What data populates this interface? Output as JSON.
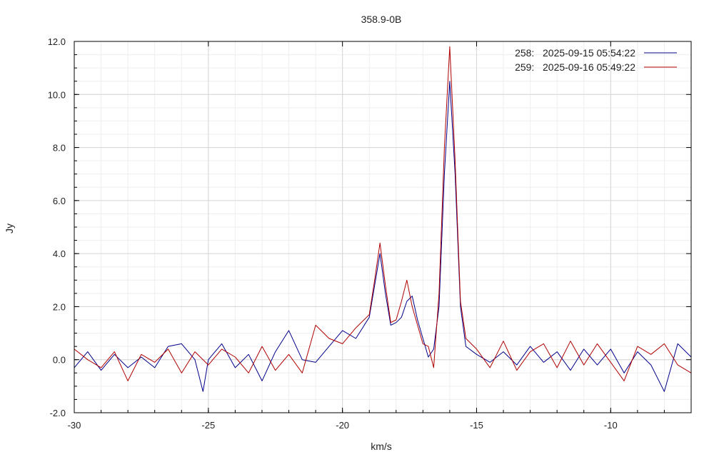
{
  "chart_data": {
    "type": "line",
    "title": "358.9-0B",
    "xlabel": "km/s",
    "ylabel": "Jy",
    "xlim": [
      -30,
      -7
    ],
    "ylim": [
      -2.0,
      12.0
    ],
    "x_ticks": [
      -30,
      -25,
      -20,
      -15,
      -10
    ],
    "x_tick_labels": [
      "-30",
      "-25",
      "-20",
      "-15",
      "-10"
    ],
    "y_ticks": [
      -2,
      0,
      2,
      4,
      6,
      8,
      10,
      12
    ],
    "y_tick_labels": [
      "-2.0",
      "0.0",
      "2.0",
      "4.0",
      "6.0",
      "8.0",
      "10.0",
      "12.0"
    ],
    "grid": true,
    "legend_position": "top-right",
    "series": [
      {
        "name": "258:   2025-09-15 05:54:22",
        "color": "#00008b",
        "points": [
          [
            -30.0,
            -0.3
          ],
          [
            -29.5,
            0.3
          ],
          [
            -29.0,
            -0.4
          ],
          [
            -28.5,
            0.2
          ],
          [
            -28.0,
            -0.3
          ],
          [
            -27.5,
            0.1
          ],
          [
            -27.0,
            -0.3
          ],
          [
            -26.5,
            0.5
          ],
          [
            -26.0,
            0.6
          ],
          [
            -25.5,
            0.0
          ],
          [
            -25.2,
            -1.2
          ],
          [
            -25.0,
            0.0
          ],
          [
            -24.5,
            0.6
          ],
          [
            -24.0,
            -0.3
          ],
          [
            -23.5,
            0.2
          ],
          [
            -23.0,
            -0.8
          ],
          [
            -22.5,
            0.3
          ],
          [
            -22.0,
            1.1
          ],
          [
            -21.5,
            0.0
          ],
          [
            -21.0,
            -0.1
          ],
          [
            -20.5,
            0.5
          ],
          [
            -20.0,
            1.1
          ],
          [
            -19.5,
            0.8
          ],
          [
            -19.0,
            1.6
          ],
          [
            -18.8,
            2.8
          ],
          [
            -18.6,
            4.0
          ],
          [
            -18.4,
            2.5
          ],
          [
            -18.2,
            1.3
          ],
          [
            -18.0,
            1.4
          ],
          [
            -17.8,
            1.6
          ],
          [
            -17.6,
            2.2
          ],
          [
            -17.4,
            2.4
          ],
          [
            -17.2,
            1.5
          ],
          [
            -17.0,
            0.8
          ],
          [
            -16.8,
            0.1
          ],
          [
            -16.6,
            0.4
          ],
          [
            -16.4,
            2.0
          ],
          [
            -16.2,
            7.0
          ],
          [
            -16.0,
            10.5
          ],
          [
            -15.8,
            7.0
          ],
          [
            -15.6,
            2.0
          ],
          [
            -15.4,
            0.5
          ],
          [
            -15.0,
            0.2
          ],
          [
            -14.5,
            -0.1
          ],
          [
            -14.0,
            0.3
          ],
          [
            -13.5,
            -0.2
          ],
          [
            -13.0,
            0.5
          ],
          [
            -12.5,
            -0.1
          ],
          [
            -12.0,
            0.3
          ],
          [
            -11.5,
            -0.4
          ],
          [
            -11.0,
            0.4
          ],
          [
            -10.5,
            -0.2
          ],
          [
            -10.0,
            0.4
          ],
          [
            -9.5,
            -0.5
          ],
          [
            -9.0,
            0.3
          ],
          [
            -8.5,
            -0.2
          ],
          [
            -8.0,
            -1.2
          ],
          [
            -7.5,
            0.6
          ],
          [
            -7.0,
            0.1
          ]
        ]
      },
      {
        "name": "259:   2025-09-16 05:49:22",
        "color": "#b00000",
        "points": [
          [
            -30.0,
            0.4
          ],
          [
            -29.5,
            0.0
          ],
          [
            -29.0,
            -0.3
          ],
          [
            -28.5,
            0.3
          ],
          [
            -28.0,
            -0.8
          ],
          [
            -27.5,
            0.2
          ],
          [
            -27.0,
            -0.1
          ],
          [
            -26.5,
            0.4
          ],
          [
            -26.0,
            -0.5
          ],
          [
            -25.5,
            0.3
          ],
          [
            -25.0,
            -0.2
          ],
          [
            -24.5,
            0.4
          ],
          [
            -24.0,
            0.1
          ],
          [
            -23.5,
            -0.5
          ],
          [
            -23.0,
            0.5
          ],
          [
            -22.5,
            -0.4
          ],
          [
            -22.0,
            0.2
          ],
          [
            -21.5,
            -0.5
          ],
          [
            -21.0,
            1.3
          ],
          [
            -20.5,
            0.8
          ],
          [
            -20.0,
            0.6
          ],
          [
            -19.5,
            1.2
          ],
          [
            -19.0,
            1.7
          ],
          [
            -18.8,
            3.0
          ],
          [
            -18.6,
            4.4
          ],
          [
            -18.4,
            2.8
          ],
          [
            -18.2,
            1.4
          ],
          [
            -18.0,
            1.5
          ],
          [
            -17.8,
            2.2
          ],
          [
            -17.6,
            3.0
          ],
          [
            -17.4,
            2.0
          ],
          [
            -17.2,
            1.3
          ],
          [
            -17.0,
            0.6
          ],
          [
            -16.8,
            0.5
          ],
          [
            -16.6,
            -0.3
          ],
          [
            -16.4,
            2.5
          ],
          [
            -16.2,
            8.0
          ],
          [
            -16.0,
            11.8
          ],
          [
            -15.8,
            7.5
          ],
          [
            -15.6,
            2.2
          ],
          [
            -15.4,
            0.8
          ],
          [
            -15.0,
            0.4
          ],
          [
            -14.5,
            -0.3
          ],
          [
            -14.0,
            0.7
          ],
          [
            -13.5,
            -0.4
          ],
          [
            -13.0,
            0.3
          ],
          [
            -12.5,
            0.6
          ],
          [
            -12.0,
            -0.3
          ],
          [
            -11.5,
            0.7
          ],
          [
            -11.0,
            -0.2
          ],
          [
            -10.5,
            0.6
          ],
          [
            -10.0,
            -0.1
          ],
          [
            -9.5,
            -0.8
          ],
          [
            -9.0,
            0.5
          ],
          [
            -8.5,
            0.2
          ],
          [
            -8.0,
            0.6
          ],
          [
            -7.5,
            -0.2
          ],
          [
            -7.0,
            -0.5
          ]
        ]
      }
    ]
  }
}
